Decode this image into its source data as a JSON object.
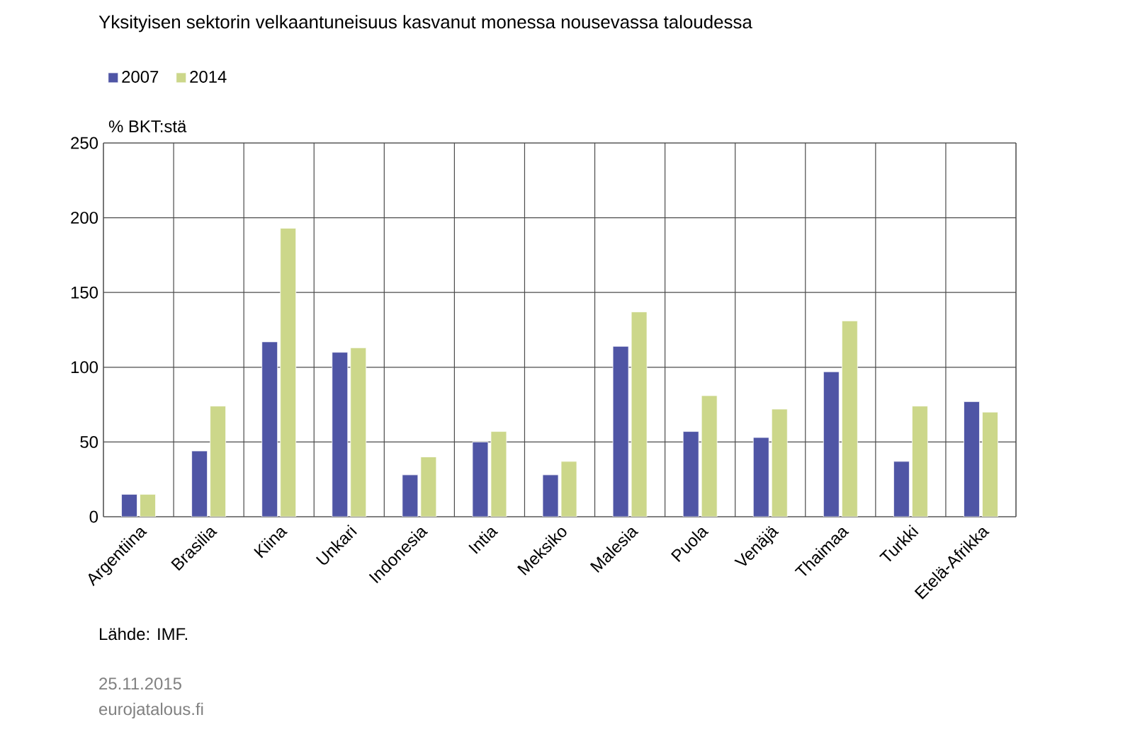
{
  "chart_data": {
    "type": "bar",
    "title": "Yksityisen sektorin velkaantuneisuus kasvanut monessa nousevassa taloudessa",
    "ylabel": "% BKT:stä",
    "categories": [
      "Argentiina",
      "Brasilia",
      "Kiina",
      "Unkari",
      "Indonesia",
      "Intia",
      "Meksiko",
      "Malesia",
      "Puola",
      "Venäjä",
      "Thaimaa",
      "Turkki",
      "Etelä-Afrikka"
    ],
    "series": [
      {
        "name": "2007",
        "color": "#4f55a5",
        "values": [
          15,
          44,
          117,
          110,
          28,
          50,
          28,
          114,
          57,
          53,
          97,
          37,
          77
        ]
      },
      {
        "name": "2014",
        "color": "#ccd78a",
        "values": [
          15,
          74,
          193,
          113,
          40,
          57,
          37,
          137,
          81,
          72,
          131,
          74,
          70
        ]
      }
    ],
    "ylim": [
      0,
      250
    ],
    "yticks": [
      0,
      50,
      100,
      150,
      200,
      250
    ],
    "grid": true,
    "legend": "top left",
    "annotations": [
      "Lähde: IMF.",
      "25.11.2015",
      "eurojatalous.fi"
    ]
  }
}
